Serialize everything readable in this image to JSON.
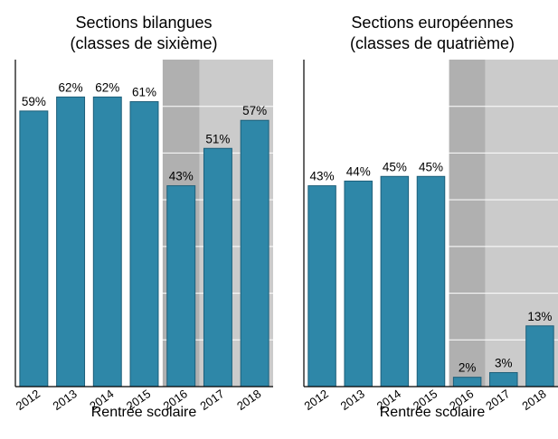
{
  "colors": {
    "bar_fill": "#2e87a8",
    "bar_stroke": "#1d5f7a",
    "shade_dark": "#b0b0b0",
    "shade_light": "#cbcbcb",
    "gridline": "#ffffff",
    "axis": "#000000",
    "background": "#ffffff"
  },
  "chart_data": [
    {
      "type": "bar",
      "title_line1": "Sections bilangues",
      "title_line2": "(classes de sixième)",
      "xlabel": "Rentrée scolaire",
      "ylabel": "",
      "categories": [
        "2012",
        "2013",
        "2014",
        "2015",
        "2016",
        "2017",
        "2018"
      ],
      "values": [
        59,
        62,
        62,
        61,
        43,
        51,
        57
      ],
      "value_labels": [
        "59%",
        "62%",
        "62%",
        "61%",
        "43%",
        "51%",
        "57%"
      ],
      "ylim": [
        0,
        70
      ],
      "grid": "horizontal, white, on shaded area",
      "shaded_categories": {
        "dark": [
          "2016"
        ],
        "light": [
          "2017",
          "2018"
        ]
      }
    },
    {
      "type": "bar",
      "title_line1": "Sections européennes",
      "title_line2": "(classes de quatrième)",
      "xlabel": "Rentrée scolaire",
      "ylabel": "",
      "categories": [
        "2012",
        "2013",
        "2014",
        "2015",
        "2016",
        "2017",
        "2018"
      ],
      "values": [
        43,
        44,
        45,
        45,
        2,
        3,
        13
      ],
      "value_labels": [
        "43%",
        "44%",
        "45%",
        "45%",
        "2%",
        "3%",
        "13%"
      ],
      "ylim": [
        0,
        70
      ],
      "grid": "horizontal, white, on shaded area",
      "shaded_categories": {
        "dark": [
          "2016"
        ],
        "light": [
          "2017",
          "2018"
        ]
      }
    }
  ]
}
